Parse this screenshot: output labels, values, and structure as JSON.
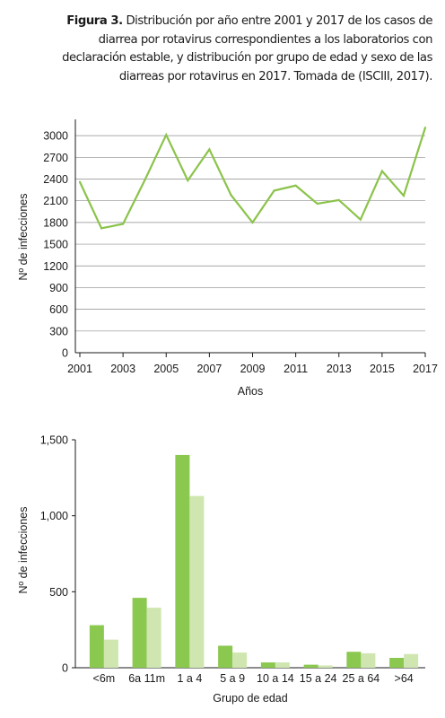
{
  "caption": {
    "label": "Figura 3.",
    "text": "Distribución por año entre 2001 y 2017 de los casos de diarrea por rotavirus correspondientes a los laboratorios con declaración estable, y distribución por grupo de edad y sexo de las diarreas por rotavirus en 2017. Tomada de (ISCIII, 2017)."
  },
  "chart_data": [
    {
      "type": "line",
      "xlabel": "Años",
      "ylabel": "Nº de infecciones",
      "x": [
        2001,
        2002,
        2003,
        2004,
        2005,
        2006,
        2007,
        2008,
        2009,
        2010,
        2011,
        2012,
        2013,
        2014,
        2015,
        2016,
        2017
      ],
      "xticks": [
        "2001",
        "2003",
        "2005",
        "2007",
        "2009",
        "2011",
        "2013",
        "2015",
        "2017"
      ],
      "yticks": [
        "0",
        "300",
        "600",
        "900",
        "1200",
        "1500",
        "1800",
        "2100",
        "2400",
        "2700",
        "3000"
      ],
      "ylim": [
        0,
        3200
      ],
      "grid": "horizontal",
      "series": [
        {
          "values": [
            2360,
            1720,
            1780,
            2380,
            3010,
            2380,
            2810,
            2180,
            1800,
            2240,
            2310,
            2060,
            2110,
            1840,
            2510,
            2170,
            3110
          ],
          "color": "#8bc34a"
        }
      ]
    },
    {
      "type": "bar",
      "xlabel": "Grupo de edad",
      "ylabel": "Nº de infecciones",
      "categories": [
        "<6m",
        "6a 11m",
        "1 a 4",
        "5 a 9",
        "10 a 14",
        "15 a 24",
        "25 a 64",
        ">64"
      ],
      "yticks": [
        "0",
        "500",
        "1,000",
        "1,500"
      ],
      "ylim": [
        0,
        1500
      ],
      "series": [
        {
          "values": [
            280,
            460,
            1400,
            145,
            35,
            20,
            105,
            65
          ],
          "color": "#8bc84f"
        },
        {
          "values": [
            185,
            395,
            1130,
            100,
            35,
            15,
            95,
            90
          ],
          "color": "#cfe6b0"
        }
      ]
    }
  ]
}
